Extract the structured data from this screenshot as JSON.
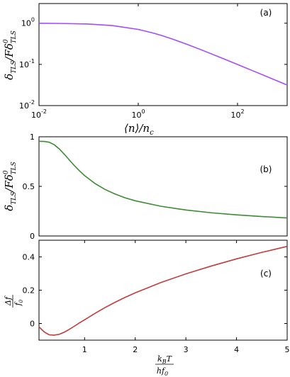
{
  "chart_data": [
    {
      "type": "line",
      "panel_label": "(a)",
      "x_scale": "log",
      "y_scale": "log",
      "xlim": [
        0.01,
        1000
      ],
      "ylim": [
        0.01,
        3
      ],
      "x_ticks": [
        0.01,
        1,
        100
      ],
      "x_tick_labels": [
        "10",
        "10",
        "10"
      ],
      "x_tick_exponents": [
        "-2",
        "0",
        "2"
      ],
      "y_ticks": [
        0.01,
        0.1,
        1
      ],
      "y_tick_labels": [
        "10",
        "10",
        "10"
      ],
      "y_tick_exponents": [
        "-2",
        "-1",
        "0"
      ],
      "xlabel": "⟨n⟩/n",
      "xlabel_sub": "c",
      "ylabel": "δ",
      "ylabel_sub": "TLS",
      "ylabel_mid": "/Fδ",
      "ylabel_sup2": "0",
      "ylabel_sub2": "TLS",
      "grid": false,
      "series": [
        {
          "color": "#a54bff",
          "x": [
            0.01,
            0.03,
            0.1,
            0.3,
            1,
            2,
            3,
            5,
            10,
            20,
            50,
            100,
            200,
            500,
            1000
          ],
          "y": [
            0.995,
            0.985,
            0.953,
            0.877,
            0.707,
            0.577,
            0.5,
            0.408,
            0.302,
            0.218,
            0.14,
            0.0995,
            0.0705,
            0.0447,
            0.0316
          ]
        }
      ]
    },
    {
      "type": "line",
      "panel_label": "(b)",
      "xlim": [
        0.1,
        5
      ],
      "ylim": [
        0,
        1
      ],
      "y_ticks": [
        0,
        0.5,
        1
      ],
      "y_tick_labels": [
        "0",
        "0.5",
        "1"
      ],
      "ylabel": "δ",
      "ylabel_sub": "TLS",
      "ylabel_mid": "/Fδ",
      "ylabel_sup2": "0",
      "ylabel_sub2": "TLS",
      "grid": false,
      "series": [
        {
          "color": "#3c8c33",
          "x": [
            0.1,
            0.2,
            0.3,
            0.4,
            0.5,
            0.6,
            0.7,
            0.8,
            0.9,
            1.0,
            1.2,
            1.4,
            1.6,
            1.8,
            2.0,
            2.5,
            3.0,
            3.5,
            4.0,
            4.5,
            5.0
          ],
          "y": [
            0.954,
            0.953,
            0.945,
            0.92,
            0.878,
            0.824,
            0.765,
            0.708,
            0.656,
            0.609,
            0.531,
            0.47,
            0.423,
            0.385,
            0.355,
            0.3,
            0.262,
            0.234,
            0.213,
            0.196,
            0.182
          ]
        }
      ]
    },
    {
      "type": "line",
      "panel_label": "(c)",
      "xlim": [
        0.1,
        5
      ],
      "ylim": [
        -0.1,
        0.5
      ],
      "x_ticks": [
        1,
        2,
        3,
        4,
        5
      ],
      "x_tick_labels": [
        "1",
        "2",
        "3",
        "4",
        "5"
      ],
      "y_ticks": [
        0,
        0.2,
        0.4
      ],
      "y_tick_labels": [
        "0",
        "0.2",
        "0.4"
      ],
      "xlabel_num": "k",
      "xlabel_num_sub": "B",
      "xlabel_num_tail": "T",
      "xlabel_den": "hf",
      "xlabel_den_sub": "0",
      "ylabel_num": "Δf",
      "ylabel_den": "f",
      "ylabel_den_sub": "0",
      "grid": false,
      "series": [
        {
          "color": "#c33c3c",
          "x": [
            0.1,
            0.2,
            0.3,
            0.4,
            0.5,
            0.6,
            0.7,
            0.8,
            0.9,
            1.0,
            1.2,
            1.4,
            1.6,
            1.8,
            2.0,
            2.5,
            3.0,
            3.5,
            4.0,
            4.5,
            5.0
          ],
          "y": [
            -0.02,
            -0.05,
            -0.068,
            -0.07,
            -0.065,
            -0.052,
            -0.035,
            -0.016,
            0.004,
            0.022,
            0.06,
            0.095,
            0.127,
            0.157,
            0.184,
            0.245,
            0.298,
            0.345,
            0.388,
            0.427,
            0.463
          ]
        }
      ]
    }
  ]
}
